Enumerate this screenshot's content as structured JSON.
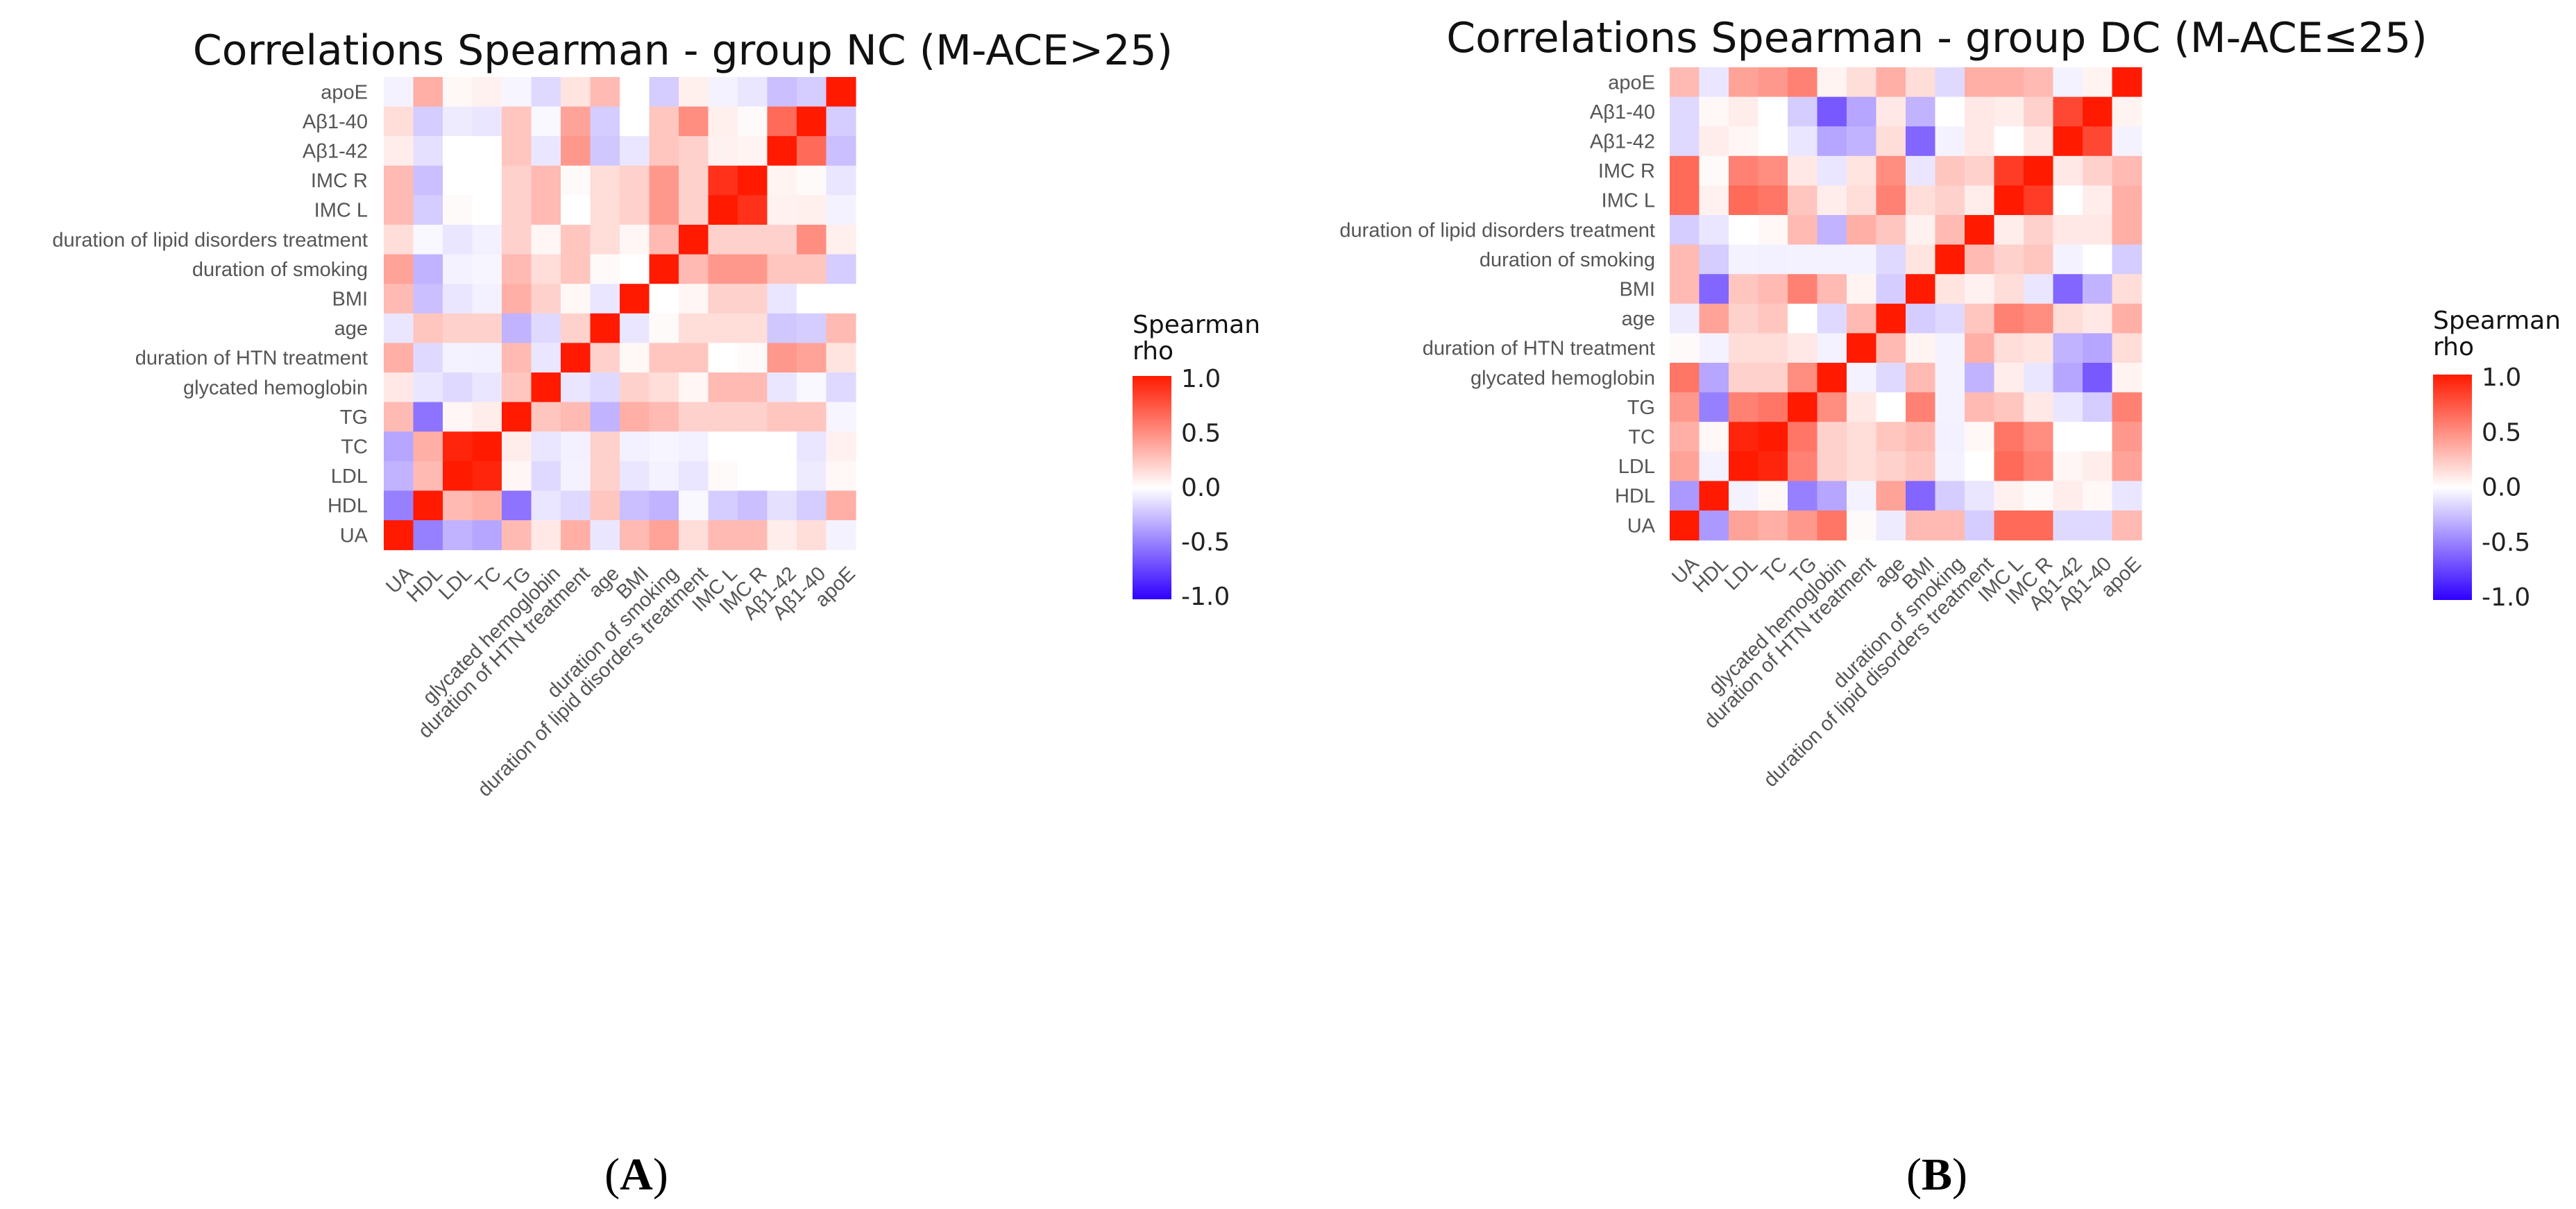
{
  "chart_data": [
    {
      "type": "heatmap",
      "title": "Correlations Spearman - group NC (M-ACE>25)",
      "panel_letter": "A",
      "row_labels": [
        "apoE",
        "Aβ1-40",
        "Aβ1-42",
        "IMC R",
        "IMC L",
        "duration of lipid disorders treatment",
        "duration of smoking",
        "BMI",
        "age",
        "duration of HTN treatment",
        "glycated hemoglobin",
        "TG",
        "TC",
        "LDL",
        "HDL",
        "UA"
      ],
      "col_labels": [
        "UA",
        "HDL",
        "LDL",
        "TC",
        "TG",
        "glycated hemoglobin",
        "duration of HTN treatment",
        "age",
        "BMI",
        "duration of smoking",
        "duration of lipid disorders treatment",
        "IMC L",
        "IMC R",
        "Aβ1-42",
        "Aβ1-40",
        "apoE"
      ],
      "legend": {
        "title_line1": "Spearman",
        "title_line2": "rho",
        "ticks": [
          "1.0",
          "0.5",
          "0.0",
          "-0.5",
          "-1.0"
        ],
        "range": [
          -1,
          1
        ]
      },
      "colors": {
        "low": "#2f00ff",
        "mid": "#ffffff",
        "high": "#ff1a00"
      },
      "values": [
        [
          -0.05,
          0.35,
          0.03,
          0.06,
          -0.04,
          -0.15,
          0.12,
          0.3,
          0,
          -0.2,
          0.07,
          -0.05,
          -0.1,
          -0.25,
          -0.2,
          1
        ],
        [
          0.15,
          -0.2,
          -0.08,
          -0.1,
          0.25,
          -0.03,
          0.4,
          -0.2,
          0,
          0.25,
          0.5,
          0.07,
          0.02,
          0.65,
          1,
          -0.2
        ],
        [
          0.08,
          -0.12,
          0,
          0,
          0.25,
          -0.1,
          0.45,
          -0.22,
          -0.1,
          0.25,
          0.2,
          0.06,
          0.05,
          1,
          0.65,
          -0.25
        ],
        [
          0.3,
          -0.25,
          0,
          0,
          0.2,
          0.3,
          0.02,
          0.15,
          0.2,
          0.45,
          0.2,
          0.9,
          1,
          0.05,
          0.02,
          -0.1
        ],
        [
          0.3,
          -0.2,
          0.02,
          0,
          0.2,
          0.3,
          0,
          0.15,
          0.2,
          0.45,
          0.2,
          1,
          0.9,
          0.06,
          0.07,
          -0.05
        ],
        [
          0.15,
          -0.03,
          -0.1,
          -0.06,
          0.2,
          0.04,
          0.25,
          0.15,
          0.04,
          0.3,
          1,
          0.2,
          0.2,
          0.2,
          0.5,
          0.07
        ],
        [
          0.4,
          -0.3,
          -0.05,
          -0.04,
          0.3,
          0.15,
          0.25,
          0.02,
          0,
          1,
          0.3,
          0.45,
          0.45,
          0.25,
          0.25,
          -0.2
        ],
        [
          0.3,
          -0.25,
          -0.1,
          -0.06,
          0.35,
          0.2,
          0.03,
          -0.1,
          1,
          0,
          0.04,
          0.2,
          0.2,
          -0.1,
          0,
          0
        ],
        [
          -0.1,
          0.25,
          0.2,
          0.2,
          -0.3,
          -0.15,
          0.2,
          1,
          -0.1,
          0.02,
          0.15,
          0.15,
          0.15,
          -0.22,
          -0.2,
          0.3
        ],
        [
          0.35,
          -0.15,
          -0.05,
          -0.06,
          0.3,
          -0.1,
          1,
          0.2,
          0.03,
          0.25,
          0.25,
          0,
          0.02,
          0.45,
          0.4,
          0.12
        ],
        [
          0.1,
          -0.1,
          -0.15,
          -0.1,
          0.25,
          1,
          -0.1,
          -0.15,
          0.2,
          0.15,
          0.04,
          0.3,
          0.3,
          -0.1,
          -0.03,
          -0.15
        ],
        [
          0.3,
          -0.55,
          0.04,
          0.08,
          1,
          0.25,
          0.3,
          -0.3,
          0.35,
          0.3,
          0.2,
          0.2,
          0.2,
          0.25,
          0.25,
          -0.04
        ],
        [
          -0.35,
          0.35,
          0.95,
          1,
          0.08,
          -0.1,
          -0.06,
          0.2,
          -0.06,
          -0.04,
          -0.06,
          0,
          0,
          0,
          -0.1,
          0.06
        ],
        [
          -0.3,
          0.3,
          1,
          0.95,
          0.04,
          -0.15,
          -0.05,
          0.2,
          -0.1,
          -0.05,
          -0.1,
          0.02,
          0,
          0,
          -0.08,
          0.03
        ],
        [
          -0.5,
          1,
          0.3,
          0.35,
          -0.55,
          -0.1,
          -0.15,
          0.25,
          -0.25,
          -0.3,
          -0.03,
          -0.2,
          -0.25,
          -0.12,
          -0.2,
          0.35
        ],
        [
          1,
          -0.5,
          -0.3,
          -0.35,
          0.3,
          0.1,
          0.35,
          -0.1,
          0.3,
          0.4,
          0.15,
          0.3,
          0.3,
          0.08,
          0.15,
          -0.05
        ]
      ]
    },
    {
      "type": "heatmap",
      "title": "Correlations Spearman - group DC (M-ACE≤25)",
      "panel_letter": "B",
      "row_labels": [
        "apoE",
        "Aβ1-40",
        "Aβ1-42",
        "IMC R",
        "IMC L",
        "duration of lipid disorders treatment",
        "duration of smoking",
        "BMI",
        "age",
        "duration of HTN treatment",
        "glycated hemoglobin",
        "TG",
        "TC",
        "LDL",
        "HDL",
        "UA"
      ],
      "col_labels": [
        "UA",
        "HDL",
        "LDL",
        "TC",
        "TG",
        "glycated hemoglobin",
        "duration of HTN treatment",
        "age",
        "BMI",
        "duration of smoking",
        "duration of lipid disorders treatment",
        "IMC L",
        "IMC R",
        "Aβ1-42",
        "Aβ1-40",
        "apoE"
      ],
      "legend": {
        "title_line1": "Spearman",
        "title_line2": "rho",
        "ticks": [
          "1.0",
          "0.5",
          "0.0",
          "-0.5",
          "-1.0"
        ],
        "range": [
          -1,
          1
        ]
      },
      "colors": {
        "low": "#2f00ff",
        "mid": "#ffffff",
        "high": "#ff1a00"
      },
      "values": [
        [
          0.3,
          -0.1,
          0.4,
          0.45,
          0.55,
          0.05,
          0.15,
          0.35,
          0.15,
          -0.15,
          0.35,
          0.35,
          0.3,
          -0.05,
          0.05,
          1
        ],
        [
          -0.15,
          0.03,
          0.08,
          0,
          -0.2,
          -0.65,
          -0.35,
          0.1,
          -0.3,
          0,
          0.1,
          0.08,
          0.2,
          0.8,
          1,
          0.05
        ],
        [
          -0.15,
          0.08,
          0.04,
          0,
          -0.1,
          -0.35,
          -0.3,
          0.15,
          -0.6,
          -0.05,
          0.1,
          0,
          0.1,
          1,
          0.8,
          -0.05
        ],
        [
          0.65,
          0.02,
          0.55,
          0.5,
          0.1,
          -0.1,
          0.12,
          0.5,
          -0.1,
          0.25,
          0.2,
          0.85,
          1,
          0.1,
          0.2,
          0.3
        ],
        [
          0.65,
          0.06,
          0.65,
          0.6,
          0.25,
          0.08,
          0.15,
          0.55,
          0.15,
          0.2,
          0.08,
          1,
          0.85,
          0,
          0.08,
          0.35
        ],
        [
          -0.2,
          -0.1,
          0,
          0.03,
          0.3,
          -0.3,
          0.35,
          0.25,
          0.06,
          0.3,
          1,
          0.08,
          0.2,
          0.1,
          0.1,
          0.35
        ],
        [
          0.3,
          -0.2,
          -0.05,
          -0.06,
          -0.05,
          -0.05,
          -0.05,
          -0.15,
          0.12,
          1,
          0.3,
          0.2,
          0.25,
          -0.05,
          0,
          -0.2
        ],
        [
          0.3,
          -0.6,
          0.25,
          0.3,
          0.55,
          0.3,
          0.05,
          -0.2,
          1,
          0.12,
          0.06,
          0.15,
          -0.1,
          -0.6,
          -0.3,
          0.15
        ],
        [
          -0.08,
          0.4,
          0.2,
          0.25,
          0,
          -0.15,
          0.3,
          1,
          -0.2,
          -0.15,
          0.25,
          0.55,
          0.5,
          0.15,
          0.1,
          0.35
        ],
        [
          0.02,
          -0.05,
          0.15,
          0.15,
          0.1,
          -0.05,
          1,
          0.3,
          0.05,
          -0.05,
          0.35,
          0.15,
          0.12,
          -0.3,
          -0.35,
          0.15
        ],
        [
          0.6,
          -0.35,
          0.2,
          0.2,
          0.5,
          1,
          -0.05,
          -0.15,
          0.3,
          -0.05,
          -0.3,
          0.08,
          -0.1,
          -0.35,
          -0.65,
          0.05
        ],
        [
          0.45,
          -0.5,
          0.55,
          0.6,
          1,
          0.5,
          0.1,
          0,
          0.55,
          -0.05,
          0.3,
          0.25,
          0.1,
          -0.1,
          -0.2,
          0.55
        ],
        [
          0.35,
          0.03,
          0.95,
          1,
          0.6,
          0.2,
          0.15,
          0.25,
          0.3,
          -0.06,
          0.03,
          0.6,
          0.5,
          0,
          0,
          0.45
        ],
        [
          0.4,
          -0.05,
          1,
          0.95,
          0.55,
          0.2,
          0.15,
          0.2,
          0.25,
          -0.05,
          0,
          0.65,
          0.55,
          0.04,
          0.08,
          0.4
        ],
        [
          -0.4,
          1,
          -0.05,
          0.03,
          -0.5,
          -0.35,
          -0.05,
          0.4,
          -0.6,
          -0.2,
          -0.1,
          0.06,
          0.02,
          0.08,
          0.03,
          -0.1
        ],
        [
          1,
          -0.4,
          0.4,
          0.35,
          0.45,
          0.6,
          0.02,
          -0.08,
          0.3,
          0.3,
          -0.2,
          0.65,
          0.65,
          -0.15,
          -0.15,
          0.3
        ]
      ]
    }
  ]
}
